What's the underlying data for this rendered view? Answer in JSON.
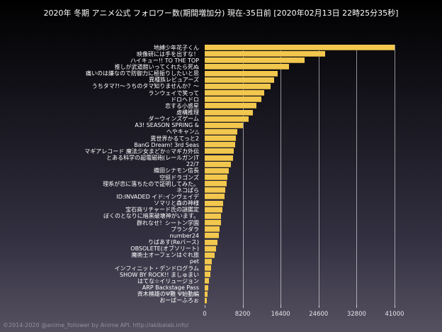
{
  "header": {
    "title": "2020年 冬期 アニメ公式 フォロワー数(期間増加分) 現在-35日前 [2020年02月13日 22時25分35秒]"
  },
  "footer": {
    "credit": "©2014-2020 @anime_follower by Anime API. http://akibalab.info/"
  },
  "colors": {
    "bar": "#f2c74e",
    "background_top": "#000000",
    "background_bottom": "#555161",
    "gridline": "#ffffff",
    "label_text": "#ffffff",
    "tick_text": "#e6e4ea",
    "footer_text": "#93909c"
  },
  "chart_data": {
    "type": "bar",
    "orientation": "horizontal",
    "title": "2020年 冬期 アニメ公式 フォロワー数(期間増加分) 現在-35日前 [2020年02月13日 22時25分35秒]",
    "xlabel": "",
    "ylabel": "",
    "xlim": [
      0,
      41000
    ],
    "xticks": [
      0,
      8200,
      16400,
      24600,
      32800,
      41000
    ],
    "grid": "vertical",
    "legend": "none",
    "sort": "descending",
    "categories": [
      "地縛少年花子くん",
      "映像研には手を出すな！",
      "ハイキュー!! TO THE TOP",
      "推しが武道館いってくれたら死ぬ",
      "痛いのは嫌なので防御力に極振りしたいと思",
      "異種族レビュアーズ",
      "うちタマ?!～うちのタマ知りませんか？～",
      "ランウェイで笑って",
      "ドロヘドロ",
      "恋する小惑星",
      "虚構推理",
      "ダーウィンズゲーム",
      "A3! SEASON SPRING &",
      "へやキャン△",
      "異世界かるてっと2",
      "BanG Dream! 3rd Seas",
      "マギアレコード 魔法少女まどか☆マギカ外伝",
      "とある科学の超電磁砲(レールガン)T",
      "22/7",
      "織田シナモン信長",
      "空挺ドラゴンズ",
      "理系が恋に落ちたので証明してみた。",
      "ネコぱら",
      "ID:INVADED イド:インヴェイデ",
      "ソマリと森の神様",
      "宝石商リチャード氏の謎鑑定",
      "ぼくのとなりに暗黒破壊神がいます。",
      "群れなせ！シートン学園",
      "プランダラ",
      "number24",
      "りばあす(Reバース)",
      "OBSOLETE(オブソリート)",
      "魔術士オーフェンはぐれ旅",
      "pet",
      "インフィニット・デンドログラム",
      "SHOW BY ROCK!! ましゅまい",
      "はてな☆イリュージョン",
      "ARP Backstage Pass",
      "斉木楠雄のΨ難 Ψ始動編",
      "おーばーふろぉ"
    ],
    "values": [
      41000,
      26000,
      21500,
      18200,
      15800,
      15000,
      14200,
      12900,
      12200,
      11200,
      10400,
      9500,
      8300,
      7000,
      6750,
      6600,
      6300,
      6100,
      5700,
      5200,
      4900,
      4800,
      4450,
      4300,
      3950,
      3850,
      3550,
      3450,
      3200,
      3050,
      2800,
      2450,
      2150,
      1550,
      1400,
      1250,
      950,
      800,
      650,
      500
    ]
  }
}
